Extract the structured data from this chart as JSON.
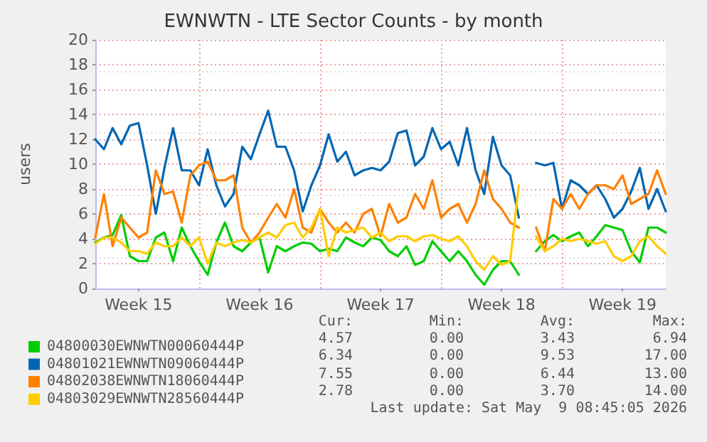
{
  "chart_data": {
    "type": "line",
    "title": "EWNWTN - LTE Sector Counts - by month",
    "ylabel": "users",
    "categories": [
      null,
      null,
      null,
      null,
      null,
      "Week 15",
      null,
      null,
      null,
      null,
      null,
      null,
      null,
      null,
      null,
      null,
      null,
      null,
      null,
      "Week 16",
      null,
      null,
      null,
      null,
      null,
      null,
      null,
      null,
      null,
      null,
      null,
      null,
      null,
      "Week 17",
      null,
      null,
      null,
      null,
      null,
      null,
      null,
      null,
      null,
      null,
      null,
      null,
      null,
      "Week 18",
      null,
      null,
      null,
      null,
      null,
      null,
      null,
      null,
      null,
      null,
      null,
      null,
      null,
      "Week 19",
      null,
      null,
      null,
      null,
      null
    ],
    "ylim": [
      0,
      20
    ],
    "yticks": [
      0,
      2,
      4,
      6,
      8,
      10,
      12,
      14,
      16,
      18,
      20
    ],
    "grid": true,
    "legend": "bottom",
    "marker": "none",
    "line_style": "solid",
    "series": [
      {
        "name": "04800030EWNWTN00060444P",
        "color": "#00cc00",
        "values": [
          3.7,
          4.1,
          4.3,
          5.9,
          2.6,
          2.2,
          2.2,
          4.1,
          4.5,
          2.2,
          4.9,
          3.4,
          2.2,
          1.1,
          3.7,
          5.3,
          3.4,
          3.0,
          3.7,
          4.1,
          1.3,
          3.4,
          3.0,
          3.4,
          3.7,
          3.6,
          3.0,
          3.2,
          3.0,
          4.1,
          3.7,
          3.4,
          4.1,
          3.9,
          3.0,
          2.6,
          3.4,
          1.9,
          2.2,
          3.8,
          3.0,
          2.2,
          3.0,
          2.2,
          1.1,
          0.3,
          1.5,
          2.2,
          2.2,
          1.1,
          null,
          3.0,
          3.8,
          4.3,
          3.8,
          4.2,
          4.5,
          3.4,
          4.2,
          5.1,
          4.9,
          4.7,
          3.0,
          2.1,
          4.9,
          4.9,
          4.5
        ]
      },
      {
        "name": "04801021EWNWTN09060444P",
        "color": "#0066b3",
        "values": [
          12.0,
          11.2,
          12.9,
          11.6,
          13.1,
          13.3,
          9.9,
          6.0,
          9.7,
          12.9,
          9.5,
          9.5,
          8.3,
          11.2,
          8.3,
          6.6,
          7.6,
          11.4,
          10.4,
          12.4,
          14.3,
          11.4,
          11.4,
          9.5,
          6.2,
          8.3,
          9.9,
          12.4,
          10.2,
          11.0,
          9.1,
          9.5,
          9.7,
          9.5,
          10.2,
          12.5,
          12.7,
          9.9,
          10.6,
          12.9,
          11.2,
          11.8,
          9.9,
          12.9,
          9.5,
          7.6,
          12.2,
          9.9,
          9.1,
          5.7,
          null,
          10.1,
          9.9,
          10.1,
          6.4,
          8.7,
          8.3,
          7.6,
          8.3,
          7.2,
          5.7,
          6.4,
          7.8,
          9.7,
          6.4,
          8.0,
          6.2
        ]
      },
      {
        "name": "04802038EWNWTN18060444P",
        "color": "#ff8000",
        "values": [
          4.1,
          7.6,
          3.4,
          5.7,
          4.9,
          4.1,
          4.5,
          9.5,
          7.6,
          7.8,
          5.3,
          9.1,
          9.9,
          10.2,
          8.7,
          8.7,
          9.1,
          4.9,
          3.7,
          4.5,
          5.7,
          6.8,
          5.7,
          8.0,
          4.9,
          4.5,
          6.4,
          5.3,
          4.5,
          5.3,
          4.5,
          6.0,
          6.4,
          4.2,
          6.8,
          5.3,
          5.7,
          7.6,
          6.4,
          8.7,
          5.7,
          6.4,
          6.8,
          5.3,
          6.8,
          9.5,
          7.2,
          6.4,
          5.3,
          4.9,
          null,
          4.9,
          3.0,
          7.2,
          6.4,
          7.6,
          6.4,
          7.6,
          8.3,
          8.3,
          8.0,
          9.1,
          6.8,
          7.2,
          7.6,
          9.5,
          7.6
        ]
      },
      {
        "name": "04803029EWNWTN28560444P",
        "color": "#ffcc00",
        "values": [
          3.6,
          4.1,
          4.1,
          3.7,
          3.0,
          3.0,
          2.8,
          3.7,
          3.4,
          3.4,
          4.1,
          3.4,
          4.1,
          2.0,
          3.7,
          3.4,
          3.7,
          3.9,
          3.7,
          4.1,
          4.5,
          4.1,
          5.1,
          5.3,
          4.1,
          4.9,
          6.4,
          2.6,
          4.9,
          4.5,
          4.7,
          4.9,
          4.1,
          4.5,
          3.8,
          4.2,
          4.2,
          3.8,
          4.2,
          4.3,
          4.0,
          3.8,
          4.2,
          3.4,
          2.2,
          1.5,
          2.6,
          1.9,
          2.2,
          8.3,
          null,
          4.2,
          3.0,
          3.4,
          4.0,
          3.8,
          4.0,
          3.8,
          3.6,
          3.8,
          2.6,
          2.2,
          2.6,
          3.8,
          4.2,
          3.4,
          2.8
        ]
      }
    ],
    "annotations": [
      "Cur:",
      "Min:",
      "Avg:",
      "Max:",
      "4.57",
      "0.00",
      "3.43",
      "6.94",
      "6.34",
      "0.00",
      "9.53",
      "17.00",
      "7.55",
      "0.00",
      "6.44",
      "13.00",
      "2.78",
      "0.00",
      "3.70",
      "14.00",
      "Last update: Sat May  9 08:45:05 2026"
    ]
  }
}
